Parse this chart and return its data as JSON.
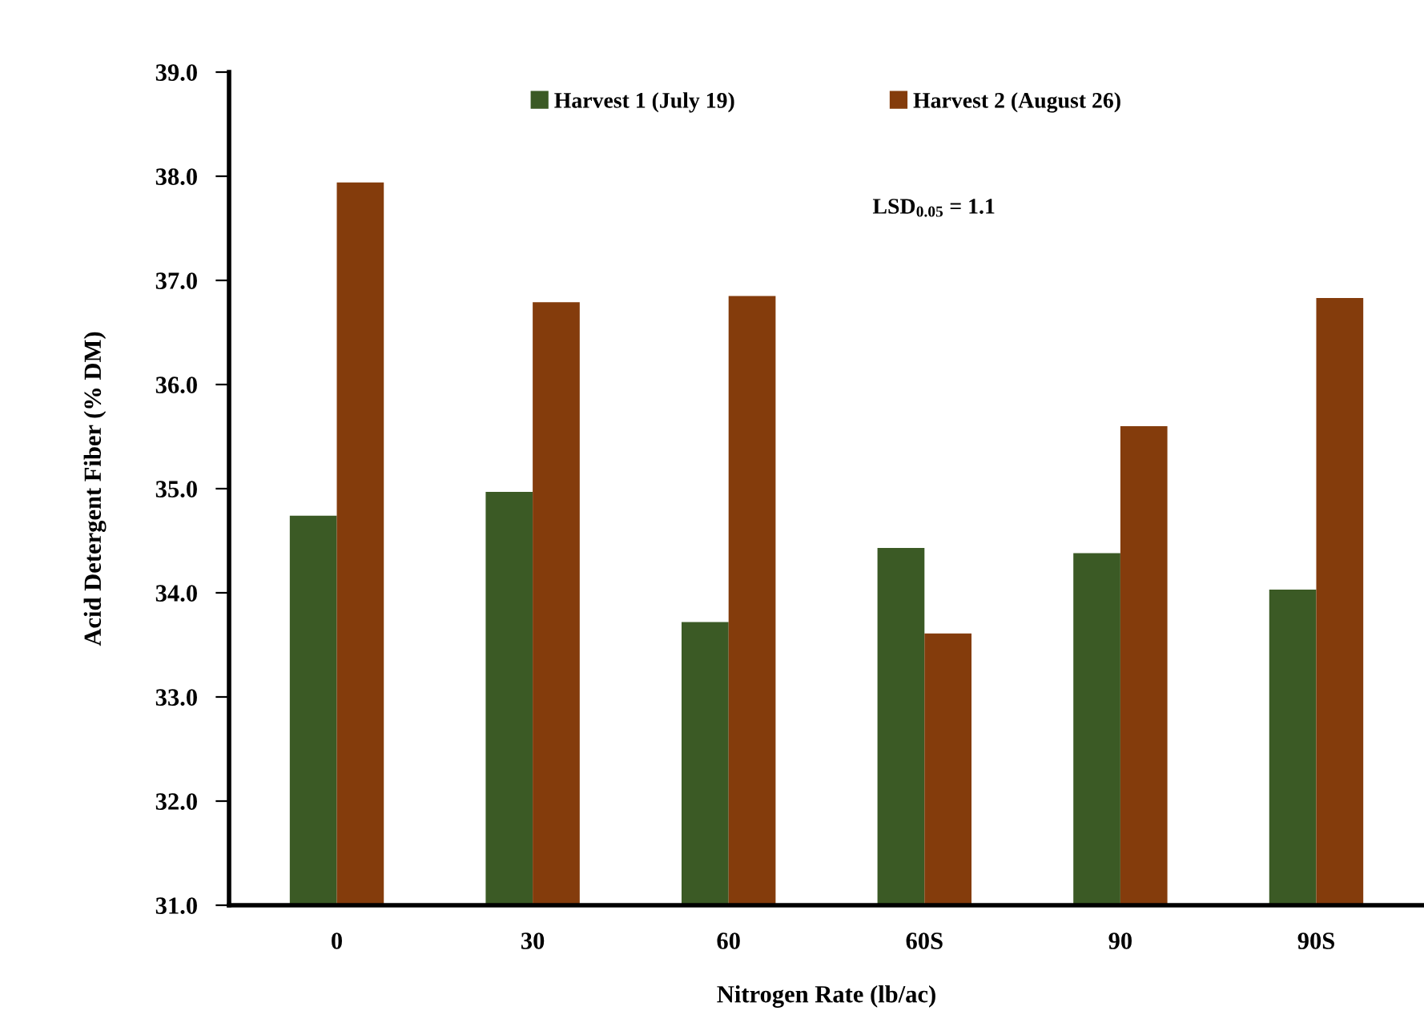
{
  "chart_data": {
    "type": "bar",
    "xlabel": "Nitrogen Rate (lb/ac)",
    "ylabel": "Acid Detergent Fiber (% DM)",
    "categories": [
      "0",
      "30",
      "60",
      "60S",
      "90",
      "90S"
    ],
    "series": [
      {
        "name": "Harvest 1 (July 19)",
        "color": "#3b5a25",
        "values": [
          34.74,
          34.97,
          33.72,
          34.43,
          34.38,
          34.03
        ]
      },
      {
        "name": "Harvest 2 (August 26)",
        "color": "#843c0c",
        "values": [
          37.94,
          36.79,
          36.85,
          33.61,
          35.6,
          36.83
        ]
      }
    ],
    "ylim": [
      31,
      39
    ],
    "yticks": [
      {
        "value": 31,
        "label": "31.0"
      },
      {
        "value": 32,
        "label": "32.0"
      },
      {
        "value": 33,
        "label": "33.0"
      },
      {
        "value": 34,
        "label": "34.0"
      },
      {
        "value": 35,
        "label": "35.0"
      },
      {
        "value": 36,
        "label": "36.0"
      },
      {
        "value": 37,
        "label": "37.0"
      },
      {
        "value": 38,
        "label": "38.0"
      },
      {
        "value": 39,
        "label": "39.0"
      }
    ],
    "annotations": [
      "LSD$_{0.05}$ = 1.1"
    ],
    "legend": "top",
    "grid": false
  }
}
